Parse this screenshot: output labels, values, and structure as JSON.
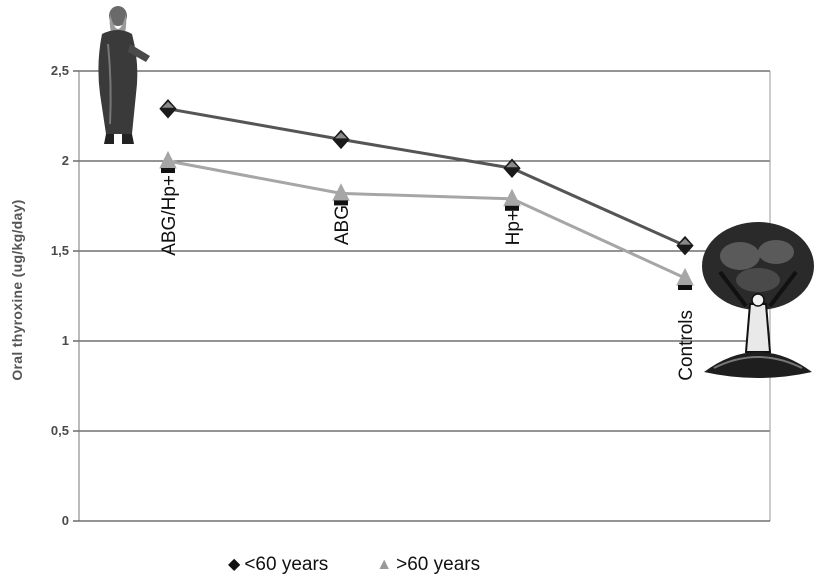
{
  "chart_data": {
    "type": "line",
    "title": "",
    "xlabel": "",
    "ylabel": "Oral thyroxine (ug/kg/day)",
    "categories": [
      "ABG/Hp+",
      "ABG",
      "Hp+",
      "Controls"
    ],
    "ylim": [
      0,
      2.5
    ],
    "yticks": [
      "0",
      "0,5",
      "1",
      "1,5",
      "2",
      "2,5"
    ],
    "grid": true,
    "legend_position": "bottom",
    "series": [
      {
        "name": "<60 years",
        "marker": "diamond",
        "color": "#555555",
        "values": [
          2.29,
          2.12,
          1.96,
          1.53
        ]
      },
      {
        "name": ">60 years",
        "marker": "triangle",
        "color": "#a6a6a6",
        "values": [
          2.0,
          1.82,
          1.79,
          1.35
        ]
      }
    ]
  },
  "legend": {
    "items": [
      {
        "symbol": "◆",
        "label": "<60 years"
      },
      {
        "symbol": "▲",
        "label": ">60 years"
      }
    ]
  },
  "decorations": {
    "left_image": "elderly-man-illustration",
    "right_image": "tree-man-illustration"
  }
}
